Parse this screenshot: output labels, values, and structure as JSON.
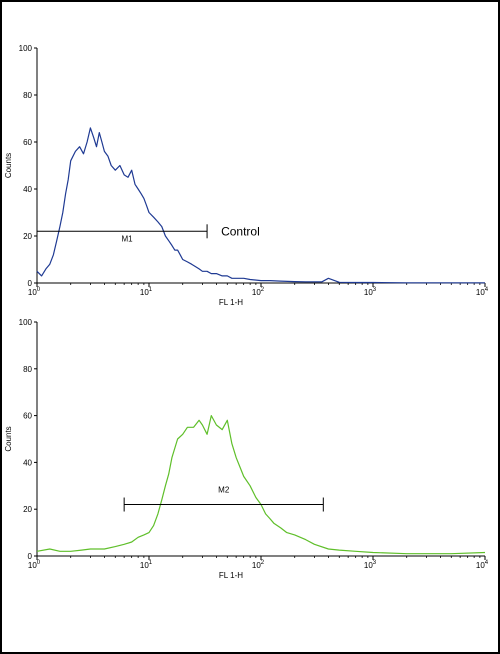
{
  "chart_data": [
    {
      "type": "line",
      "x_scale": "log",
      "xlim": [
        1,
        10000
      ],
      "ylim": [
        0,
        100
      ],
      "xlabel": "FL 1-H",
      "ylabel": "Counts",
      "x_ticks": [
        {
          "base": "10",
          "exp": "0"
        },
        {
          "base": "10",
          "exp": "1"
        },
        {
          "base": "10",
          "exp": "2"
        },
        {
          "base": "10",
          "exp": "3"
        },
        {
          "base": "10",
          "exp": "4"
        }
      ],
      "y_ticks": [
        "0",
        "20",
        "40",
        "60",
        "80",
        "100"
      ],
      "series": [
        {
          "color": "#1f3a93",
          "x": [
            1,
            1.1,
            1.2,
            1.3,
            1.4,
            1.5,
            1.6,
            1.7,
            1.8,
            1.9,
            2.0,
            2.2,
            2.4,
            2.6,
            2.8,
            3.0,
            3.2,
            3.4,
            3.6,
            3.8,
            4.0,
            4.3,
            4.6,
            5.0,
            5.5,
            6.0,
            6.5,
            7.0,
            7.5,
            8.0,
            8.5,
            9.0,
            9.5,
            10,
            11,
            12,
            13,
            14,
            15,
            16,
            17,
            18,
            19,
            20,
            22,
            24,
            26,
            28,
            30,
            33,
            36,
            40,
            45,
            50,
            55,
            60,
            70,
            80,
            100,
            120,
            150,
            200,
            250,
            300,
            350,
            400,
            500,
            700,
            1000,
            2000,
            5000,
            10000
          ],
          "y": [
            5,
            3,
            6,
            8,
            12,
            18,
            24,
            30,
            38,
            44,
            52,
            56,
            58,
            55,
            60,
            66,
            62,
            58,
            64,
            60,
            56,
            54,
            50,
            48,
            50,
            46,
            45,
            48,
            42,
            40,
            38,
            36,
            33,
            30,
            28,
            26,
            24,
            20,
            18,
            16,
            14,
            14,
            12,
            10,
            9,
            8,
            7,
            6,
            5,
            5,
            4,
            4,
            3,
            3,
            2,
            2,
            2,
            1.5,
            1,
            1,
            0.8,
            0.6,
            0.5,
            0.5,
            0.5,
            2,
            0.3,
            0.2,
            0.2,
            0.1,
            0.1,
            0.1
          ]
        }
      ],
      "gate": {
        "label": "M1",
        "x_start": 1,
        "x_end": 33,
        "y": 22
      },
      "annotation": "Control"
    },
    {
      "type": "line",
      "x_scale": "log",
      "xlim": [
        1,
        10000
      ],
      "ylim": [
        0,
        100
      ],
      "xlabel": "FL 1-H",
      "ylabel": "Counts",
      "x_ticks": [
        {
          "base": "10",
          "exp": "0"
        },
        {
          "base": "10",
          "exp": "1"
        },
        {
          "base": "10",
          "exp": "2"
        },
        {
          "base": "10",
          "exp": "3"
        },
        {
          "base": "10",
          "exp": "4"
        }
      ],
      "y_ticks": [
        "0",
        "20",
        "40",
        "60",
        "80",
        "100"
      ],
      "series": [
        {
          "color": "#5fbf2a",
          "x": [
            1,
            1.3,
            1.6,
            2,
            2.5,
            3,
            4,
            5,
            6,
            7,
            8,
            9,
            10,
            11,
            12,
            13,
            14,
            15,
            16,
            18,
            20,
            22,
            25,
            28,
            30,
            33,
            36,
            40,
            45,
            50,
            55,
            60,
            65,
            70,
            80,
            90,
            100,
            110,
            120,
            130,
            150,
            170,
            200,
            250,
            300,
            400,
            500,
            700,
            1000,
            2000,
            5000,
            10000
          ],
          "y": [
            2,
            3,
            2,
            2,
            2.5,
            3,
            3,
            4,
            5,
            6,
            8,
            9,
            10,
            13,
            18,
            24,
            30,
            35,
            42,
            50,
            52,
            55,
            55,
            58,
            56,
            52,
            60,
            56,
            54,
            58,
            48,
            42,
            38,
            34,
            30,
            25,
            22,
            18,
            16,
            14,
            12,
            10,
            9,
            7,
            5,
            3,
            2.5,
            2,
            1.5,
            1,
            1,
            1.5
          ]
        }
      ],
      "gate": {
        "label": "M2",
        "x_start": 6,
        "x_end": 360,
        "y": 22
      }
    }
  ]
}
